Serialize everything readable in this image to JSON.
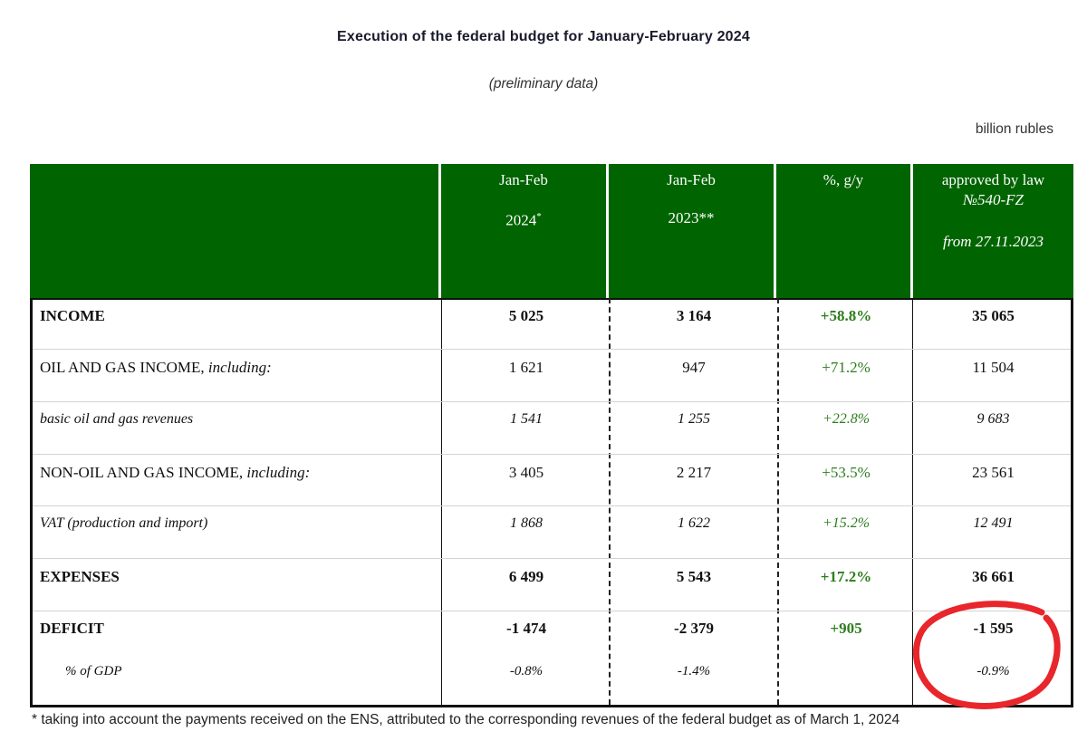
{
  "title": "Execution of the federal budget for January-February 2024",
  "subtitle": "(preliminary data)",
  "units": "billion rubles",
  "header": {
    "col1": {
      "line1": "Jan-Feb",
      "line2": "2024",
      "mark": "*"
    },
    "col2": {
      "line1": "Jan-Feb",
      "line2": "2023**"
    },
    "col3": {
      "line1": "%, g/y"
    },
    "col4": {
      "line1": "approved by law",
      "line2": "№540-FZ",
      "line3": "from 27.11.2023"
    }
  },
  "rows": [
    {
      "label": "INCOME",
      "label_suffix": "",
      "v2024": "5 025",
      "v2023": "3 164",
      "pct": "+58.8%",
      "law": "35 065"
    },
    {
      "label": "OIL AND GAS INCOME,",
      "label_suffix": " including:",
      "v2024": "1 621",
      "v2023": "947",
      "pct": "+71.2%",
      "law": "11 504"
    },
    {
      "label": "basic oil and gas revenues",
      "label_suffix": "",
      "v2024": "1 541",
      "v2023": "1 255",
      "pct": "+22.8%",
      "law": "9 683"
    },
    {
      "label": "NON-OIL AND GAS INCOME,",
      "label_suffix": " including:",
      "v2024": "3 405",
      "v2023": "2 217",
      "pct": "+53.5%",
      "law": "23 561"
    },
    {
      "label": "VAT (production and import)",
      "label_suffix": "",
      "v2024": "1 868",
      "v2023": "1 622",
      "pct": "+15.2%",
      "law": "12 491"
    },
    {
      "label": "EXPENSES",
      "label_suffix": "",
      "v2024": "6 499",
      "v2023": "5 543",
      "pct": "+17.2%",
      "law": "36 661"
    },
    {
      "label": "DEFICIT",
      "label_suffix": "",
      "v2024": "-1 474",
      "v2023": "-2 379",
      "pct": "+905",
      "law": "-1 595"
    },
    {
      "label": "% of GDP",
      "label_suffix": "",
      "v2024": "-0.8%",
      "v2023": "-1.4%",
      "pct": "",
      "law": "-0.9%"
    }
  ],
  "footnote": "* taking into account the payments received on the ENS, attributed to the corresponding revenues of the federal budget as of March 1, 2024",
  "colors": {
    "header_green": "#006400",
    "pct_green": "#2e7d1e",
    "annotation_red": "#e8262b"
  }
}
